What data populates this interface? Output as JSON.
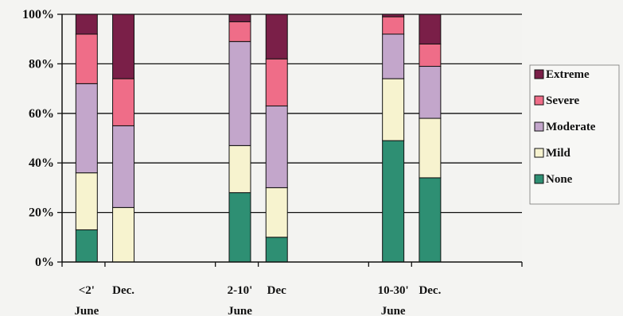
{
  "chart_data": {
    "type": "bar",
    "stacked": true,
    "title": "",
    "xlabel": "",
    "ylabel": "",
    "ylim": [
      0,
      100
    ],
    "yticks": [
      "0%",
      "20%",
      "40%",
      "60%",
      "80%",
      "100%"
    ],
    "grid": true,
    "legend_position": "right",
    "categories": [
      {
        "label": "<2'",
        "sublabel": "June"
      },
      {
        "label": "Dec.",
        "sublabel": ""
      },
      {
        "label": "2-10'",
        "sublabel": "June"
      },
      {
        "label": "Dec",
        "sublabel": ""
      },
      {
        "label": "10-30'",
        "sublabel": "June"
      },
      {
        "label": "Dec.",
        "sublabel": ""
      }
    ],
    "series": [
      {
        "name": "None",
        "color": "#2e8f73",
        "values": [
          13,
          0,
          28,
          10,
          49,
          34
        ]
      },
      {
        "name": "Mild",
        "color": "#f7f3cf",
        "values": [
          23,
          22,
          19,
          20,
          25,
          24
        ]
      },
      {
        "name": "Moderate",
        "color": "#c3a6cb",
        "values": [
          36,
          33,
          42,
          33,
          18,
          21
        ]
      },
      {
        "name": "Severe",
        "color": "#ef6d88",
        "values": [
          20,
          19,
          8,
          19,
          7,
          9
        ]
      },
      {
        "name": "Extreme",
        "color": "#7a1f48",
        "values": [
          8,
          26,
          3,
          18,
          1,
          12
        ]
      }
    ],
    "legend_order": [
      "Extreme",
      "Severe",
      "Moderate",
      "Mild",
      "None"
    ]
  }
}
